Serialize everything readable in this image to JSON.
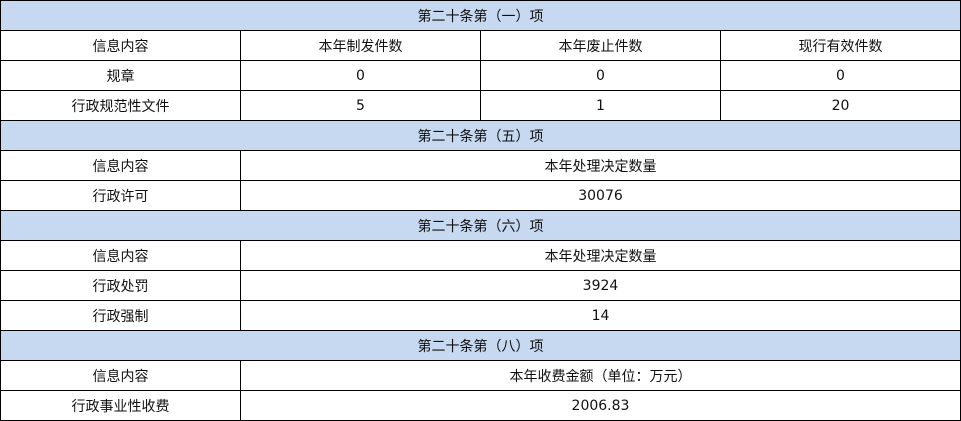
{
  "sections": [
    {
      "title": "第二十条第（一）项",
      "headers": [
        "信息内容",
        "本年制发件数",
        "本年废止件数",
        "现行有效件数"
      ],
      "rows": [
        [
          "规章",
          "0",
          "0",
          "0"
        ],
        [
          "行政规范性文件",
          "5",
          "1",
          "20"
        ]
      ]
    },
    {
      "title": "第二十条第（五）项",
      "headers": [
        "信息内容",
        "本年处理决定数量"
      ],
      "rows": [
        [
          "行政许可",
          "30076"
        ]
      ]
    },
    {
      "title": "第二十条第（六）项",
      "headers": [
        "信息内容",
        "本年处理决定数量"
      ],
      "rows": [
        [
          "行政处罚",
          "3924"
        ],
        [
          "行政强制",
          "14"
        ]
      ]
    },
    {
      "title": "第二十条第（八）项",
      "headers": [
        "信息内容",
        "本年收费金额（单位：万元）"
      ],
      "rows": [
        [
          "行政事业性收费",
          "2006.83"
        ]
      ]
    }
  ],
  "colors": {
    "section_header_bg": "#c6d9f0",
    "border": "#000000"
  }
}
